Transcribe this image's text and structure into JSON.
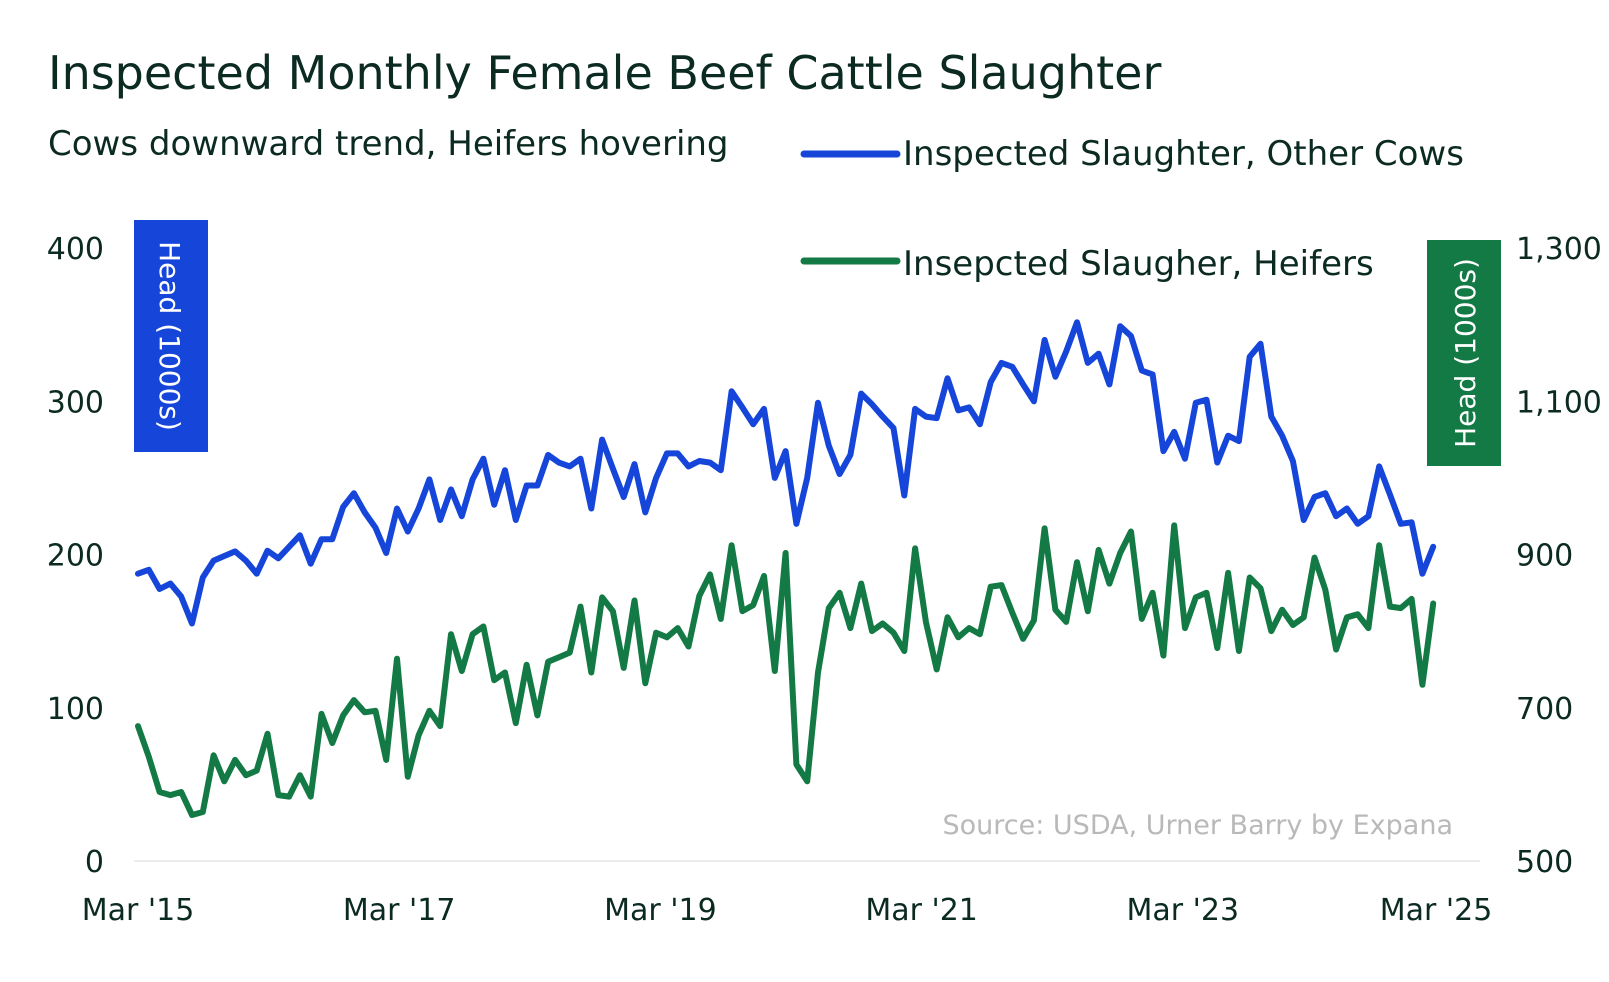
{
  "chart_data": {
    "type": "line",
    "title": "Inspected Monthly Female Beef Cattle Slaughter",
    "subtitle": "Cows downward trend, Heifers hovering",
    "source": "Source: USDA, Urner Barry by Expana",
    "x_tick_labels": [
      "Mar '15",
      "Mar '17",
      "Mar '19",
      "Mar '21",
      "Mar '23",
      "Mar '25"
    ],
    "x_range": [
      "2015-03",
      "2025-04"
    ],
    "left_axis": {
      "label": "Head (1000s)",
      "ticks": [
        "0",
        "100",
        "200",
        "300",
        "400"
      ],
      "ylim": [
        0,
        400
      ],
      "color": "#1646d9"
    },
    "right_axis": {
      "label": "Head (1000s)",
      "ticks": [
        "500",
        "700",
        "900",
        "1,100",
        "1,300"
      ],
      "ylim": [
        500,
        1300
      ],
      "color": "#147a45"
    },
    "grid": false,
    "legend_placement": "top-right",
    "series": [
      {
        "name": "Inspected Slaughter, Other Cows",
        "axis": "right",
        "color": "#1646d9",
        "x": [
          "2015-03",
          "2015-04",
          "2015-05",
          "2015-06",
          "2015-07",
          "2015-08",
          "2015-09",
          "2015-10",
          "2015-11",
          "2015-12",
          "2016-01",
          "2016-02",
          "2016-03",
          "2016-04",
          "2016-05",
          "2016-06",
          "2016-07",
          "2016-08",
          "2016-09",
          "2016-10",
          "2016-11",
          "2016-12",
          "2017-01",
          "2017-02",
          "2017-03",
          "2017-04",
          "2017-05",
          "2017-06",
          "2017-07",
          "2017-08",
          "2017-09",
          "2017-10",
          "2017-11",
          "2017-12",
          "2018-01",
          "2018-02",
          "2018-03",
          "2018-04",
          "2018-05",
          "2018-06",
          "2018-07",
          "2018-08",
          "2018-09",
          "2018-10",
          "2018-11",
          "2018-12",
          "2019-01",
          "2019-02",
          "2019-03",
          "2019-04",
          "2019-05",
          "2019-06",
          "2019-07",
          "2019-08",
          "2019-09",
          "2019-10",
          "2019-11",
          "2019-12",
          "2020-01",
          "2020-02",
          "2020-03",
          "2020-04",
          "2020-05",
          "2020-06",
          "2020-07",
          "2020-08",
          "2020-09",
          "2020-10",
          "2020-11",
          "2020-12",
          "2021-01",
          "2021-02",
          "2021-03",
          "2021-04",
          "2021-05",
          "2021-06",
          "2021-07",
          "2021-08",
          "2021-09",
          "2021-10",
          "2021-11",
          "2021-12",
          "2022-01",
          "2022-02",
          "2022-03",
          "2022-04",
          "2022-05",
          "2022-06",
          "2022-07",
          "2022-08",
          "2022-09",
          "2022-10",
          "2022-11",
          "2022-12",
          "2023-01",
          "2023-02",
          "2023-03",
          "2023-04",
          "2023-05",
          "2023-06",
          "2023-07",
          "2023-08",
          "2023-09",
          "2023-10",
          "2023-11",
          "2023-12",
          "2024-01",
          "2024-02",
          "2024-03",
          "2024-04",
          "2024-05",
          "2024-06",
          "2024-07",
          "2024-08",
          "2024-09",
          "2024-10",
          "2024-11",
          "2024-12",
          "2025-01",
          "2025-02",
          "2025-03"
        ],
        "values": [
          875,
          880,
          855,
          862,
          845,
          810,
          870,
          892,
          898,
          904,
          892,
          875,
          905,
          895,
          910,
          925,
          888,
          920,
          920,
          962,
          980,
          955,
          935,
          902,
          960,
          930,
          960,
          998,
          945,
          985,
          950,
          998,
          1025,
          965,
          1010,
          945,
          990,
          990,
          1030,
          1020,
          1015,
          1025,
          960,
          1050,
          1012,
          975,
          1018,
          955,
          1000,
          1032,
          1032,
          1015,
          1022,
          1020,
          1010,
          1113,
          1092,
          1070,
          1090,
          1000,
          1035,
          940,
          1000,
          1098,
          1042,
          1005,
          1030,
          1110,
          1096,
          1080,
          1065,
          977,
          1090,
          1080,
          1078,
          1130,
          1088,
          1092,
          1070,
          1125,
          1150,
          1145,
          1122,
          1100,
          1180,
          1132,
          1165,
          1203,
          1150,
          1162,
          1122,
          1198,
          1185,
          1140,
          1135,
          1035,
          1060,
          1025,
          1098,
          1102,
          1020,
          1055,
          1048,
          1158,
          1175,
          1080,
          1055,
          1022,
          945,
          975,
          980,
          950,
          960,
          940,
          950,
          1015,
          978,
          940,
          942,
          875,
          910
        ]
      },
      {
        "name": "Insepcted Slaugher, Heifers",
        "axis": "left",
        "color": "#147a45",
        "x": [
          "2015-03",
          "2015-04",
          "2015-05",
          "2015-06",
          "2015-07",
          "2015-08",
          "2015-09",
          "2015-10",
          "2015-11",
          "2015-12",
          "2016-01",
          "2016-02",
          "2016-03",
          "2016-04",
          "2016-05",
          "2016-06",
          "2016-07",
          "2016-08",
          "2016-09",
          "2016-10",
          "2016-11",
          "2016-12",
          "2017-01",
          "2017-02",
          "2017-03",
          "2017-04",
          "2017-05",
          "2017-06",
          "2017-07",
          "2017-08",
          "2017-09",
          "2017-10",
          "2017-11",
          "2017-12",
          "2018-01",
          "2018-02",
          "2018-03",
          "2018-04",
          "2018-05",
          "2018-06",
          "2018-07",
          "2018-08",
          "2018-09",
          "2018-10",
          "2018-11",
          "2018-12",
          "2019-01",
          "2019-02",
          "2019-03",
          "2019-04",
          "2019-05",
          "2019-06",
          "2019-07",
          "2019-08",
          "2019-09",
          "2019-10",
          "2019-11",
          "2019-12",
          "2020-01",
          "2020-02",
          "2020-03",
          "2020-04",
          "2020-05",
          "2020-06",
          "2020-07",
          "2020-08",
          "2020-09",
          "2020-10",
          "2020-11",
          "2020-12",
          "2021-01",
          "2021-02",
          "2021-03",
          "2021-04",
          "2021-05",
          "2021-06",
          "2021-07",
          "2021-08",
          "2021-09",
          "2021-10",
          "2021-11",
          "2021-12",
          "2022-01",
          "2022-02",
          "2022-03",
          "2022-04",
          "2022-05",
          "2022-06",
          "2022-07",
          "2022-08",
          "2022-09",
          "2022-10",
          "2022-11",
          "2022-12",
          "2023-01",
          "2023-02",
          "2023-03",
          "2023-04",
          "2023-05",
          "2023-06",
          "2023-07",
          "2023-08",
          "2023-09",
          "2023-10",
          "2023-11",
          "2023-12",
          "2024-01",
          "2024-02",
          "2024-03",
          "2024-04",
          "2024-05",
          "2024-06",
          "2024-07",
          "2024-08",
          "2024-09",
          "2024-10",
          "2024-11",
          "2024-12",
          "2025-01",
          "2025-02",
          "2025-03"
        ],
        "values": [
          88,
          68,
          45,
          43,
          45,
          30,
          32,
          69,
          52,
          66,
          56,
          59,
          83,
          43,
          42,
          56,
          42,
          96,
          77,
          95,
          105,
          97,
          98,
          66,
          132,
          55,
          82,
          98,
          88,
          148,
          124,
          148,
          153,
          118,
          123,
          90,
          128,
          95,
          130,
          133,
          136,
          166,
          123,
          172,
          163,
          126,
          170,
          116,
          149,
          146,
          152,
          140,
          173,
          187,
          158,
          206,
          163,
          167,
          186,
          124,
          201,
          63,
          52,
          123,
          165,
          175,
          152,
          181,
          150,
          155,
          149,
          137,
          204,
          156,
          125,
          159,
          146,
          152,
          148,
          179,
          180,
          162,
          145,
          157,
          217,
          164,
          156,
          195,
          163,
          203,
          181,
          201,
          215,
          158,
          175,
          134,
          219,
          152,
          172,
          175,
          139,
          188,
          137,
          185,
          178,
          150,
          164,
          154,
          159,
          198,
          177,
          138,
          159,
          161,
          152,
          206,
          166,
          165,
          171,
          115,
          168
        ]
      }
    ]
  }
}
